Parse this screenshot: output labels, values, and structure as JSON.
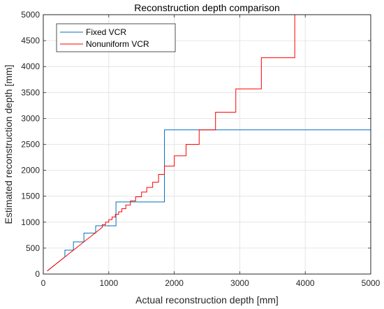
{
  "chart_data": {
    "type": "line",
    "title": "Reconstruction depth comparison",
    "xlabel": "Actual reconstruction depth [mm]",
    "ylabel": "Estimated reconstruction depth [mm]",
    "xlim": [
      0,
      5000
    ],
    "ylim": [
      0,
      5000
    ],
    "xticks": [
      0,
      1000,
      2000,
      3000,
      4000,
      5000
    ],
    "yticks": [
      0,
      500,
      1000,
      1500,
      2000,
      2500,
      3000,
      3500,
      4000,
      4500,
      5000
    ],
    "xtick_labels": [
      "0",
      "1000",
      "2000",
      "3000",
      "4000",
      "5000"
    ],
    "ytick_labels": [
      "0",
      "500",
      "1000",
      "1500",
      "2000",
      "2500",
      "3000",
      "3500",
      "4000",
      "4500",
      "5000"
    ],
    "grid": true,
    "legend_position": "top-left",
    "series": [
      {
        "name": "Fixed VCR",
        "color": "#0072BD",
        "x": [
          60,
          330,
          330,
          460,
          460,
          620,
          620,
          800,
          800,
          1110,
          1110,
          1850,
          1850,
          5000
        ],
        "y": [
          60,
          330,
          460,
          460,
          620,
          620,
          790,
          790,
          930,
          930,
          1390,
          1390,
          2780,
          2780
        ]
      },
      {
        "name": "Nonuniform VCR",
        "color": "#FF0000",
        "x": [
          60,
          900,
          900,
          950,
          950,
          1000,
          1000,
          1050,
          1050,
          1100,
          1100,
          1150,
          1150,
          1200,
          1200,
          1260,
          1260,
          1330,
          1330,
          1410,
          1410,
          1500,
          1500,
          1580,
          1580,
          1670,
          1670,
          1760,
          1760,
          1850,
          1850,
          2000,
          2000,
          2180,
          2180,
          2380,
          2380,
          2630,
          2630,
          2940,
          2940,
          3330,
          3330,
          3840,
          3840,
          4550,
          4550,
          5000
        ],
        "y": [
          60,
          900,
          950,
          950,
          1000,
          1000,
          1050,
          1050,
          1100,
          1100,
          1150,
          1150,
          1200,
          1200,
          1260,
          1260,
          1330,
          1330,
          1410,
          1410,
          1490,
          1490,
          1580,
          1580,
          1670,
          1670,
          1770,
          1770,
          1920,
          1920,
          2080,
          2080,
          2280,
          2280,
          2500,
          2500,
          2780,
          2780,
          3120,
          3120,
          3570,
          3570,
          4170,
          4170,
          5000,
          5000,
          5000,
          5000
        ]
      }
    ]
  }
}
